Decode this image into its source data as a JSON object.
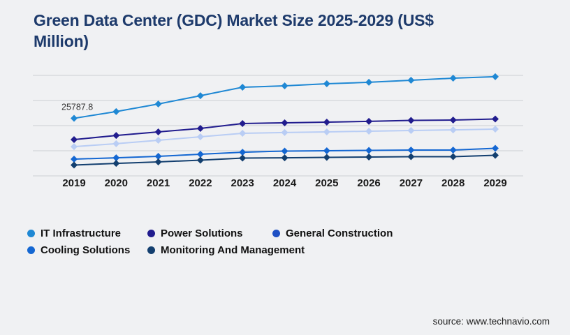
{
  "page": {
    "background": "#f0f1f3"
  },
  "header": {
    "title": "Green Data Center (GDC) Market Size 2025-2029 (US$\nMillion)",
    "color": "#1d3a6b"
  },
  "colors": {
    "gridline": "#cbced3",
    "axis_label": "#1a1a1a",
    "data_label": "#333333",
    "source_text": "#1f1f1f"
  },
  "source": {
    "label": "source: www.technavio.com"
  },
  "chart_data": {
    "type": "line",
    "title": "Green Data Center (GDC) Market Size 2025-2029 (US$ Million)",
    "xlabel": "",
    "ylabel": "US$ Million",
    "categories": [
      "2019",
      "2020",
      "2021",
      "2022",
      "2023",
      "2024",
      "2025",
      "2026",
      "2027",
      "2028",
      "2029"
    ],
    "ylim": [
      0,
      45000
    ],
    "gridline_count": 5,
    "grid": "horizontal-only",
    "y_tick_labels_visible": false,
    "legend_position": "bottom-left",
    "marker": "diamond",
    "series": [
      {
        "name": "IT Infrastructure",
        "color": "#1f88d4",
        "legend_color": "#1f88d4",
        "values": [
          25787.8,
          28800,
          32200,
          35900,
          39700,
          40300,
          41250,
          41900,
          42800,
          43750,
          44400
        ]
      },
      {
        "name": "Power Solutions",
        "color": "#211c8e",
        "legend_color": "#211c8e",
        "values": [
          16250,
          18100,
          19700,
          21250,
          23450,
          23750,
          24050,
          24400,
          24850,
          25000,
          25450
        ]
      },
      {
        "name": "General Construction",
        "color": "#b9cdf4",
        "legend_color": "#1e50c4",
        "values": [
          13100,
          14400,
          15950,
          17500,
          19050,
          19400,
          19700,
          20000,
          20300,
          20600,
          20950
        ]
      },
      {
        "name": "Cooling Solutions",
        "color": "#1467d2",
        "legend_color": "#1467d2",
        "values": [
          7500,
          8100,
          8750,
          9700,
          10600,
          11100,
          11250,
          11400,
          11550,
          11550,
          12350
        ]
      },
      {
        "name": "Monitoring And Management",
        "color": "#133f6f",
        "legend_color": "#133f6f",
        "values": [
          4850,
          5600,
          6250,
          7050,
          7950,
          8100,
          8300,
          8450,
          8600,
          8600,
          9200
        ]
      }
    ],
    "point_label": {
      "series_index": 0,
      "x_index": 0,
      "text": "25787.8"
    }
  }
}
